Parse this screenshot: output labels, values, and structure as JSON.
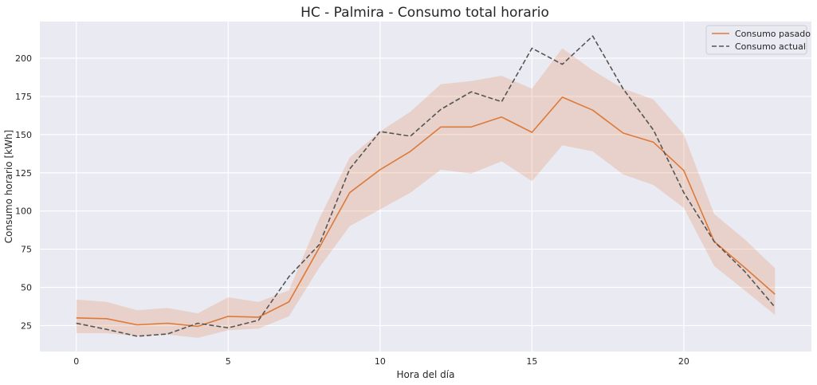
{
  "chart_data": {
    "type": "line",
    "title": "HC - Palmira - Consumo total horario",
    "xlabel": "Hora del día",
    "ylabel": "Consumo horario [kWh]",
    "xlim": [
      -1.2,
      24.2
    ],
    "ylim": [
      8,
      224
    ],
    "xticks": [
      0,
      5,
      10,
      15,
      20
    ],
    "yticks": [
      25,
      50,
      75,
      100,
      125,
      150,
      175,
      200
    ],
    "grid": true,
    "legend_position": "top-right",
    "x": [
      0,
      1,
      2,
      3,
      4,
      5,
      6,
      7,
      8,
      9,
      10,
      11,
      12,
      13,
      14,
      15,
      16,
      17,
      18,
      19,
      20,
      21,
      22,
      23
    ],
    "series": [
      {
        "name": "Consumo pasado",
        "style": "solid",
        "color": "#dd7a3a",
        "values": [
          30,
          29.5,
          25.5,
          26.5,
          24.5,
          31,
          30.5,
          40.5,
          76,
          112,
          127,
          139,
          155,
          155,
          161.5,
          151.5,
          174.5,
          166,
          151,
          145,
          126.5,
          80,
          63,
          45.5
        ],
        "band_upper": [
          42,
          40.5,
          35,
          36.5,
          33,
          43.5,
          40.5,
          48,
          95,
          135,
          152,
          165,
          183,
          185,
          188.5,
          180,
          206.5,
          192,
          180,
          173,
          150,
          98,
          81.5,
          62.5
        ],
        "band_lower": [
          20,
          20,
          18,
          19,
          17,
          22,
          23,
          31,
          63,
          90,
          101,
          112,
          127,
          124.5,
          132.5,
          119.5,
          143,
          139,
          124,
          117,
          102,
          64,
          48,
          32
        ]
      },
      {
        "name": "Consumo actual",
        "style": "dashed",
        "color": "#555555",
        "values": [
          26.5,
          22.5,
          18,
          19.5,
          26.5,
          23.5,
          28.5,
          57,
          78,
          127.5,
          152,
          149,
          166.5,
          178,
          171.5,
          206.5,
          196,
          214.5,
          180,
          153,
          112,
          80,
          60.5,
          37
        ]
      }
    ]
  }
}
